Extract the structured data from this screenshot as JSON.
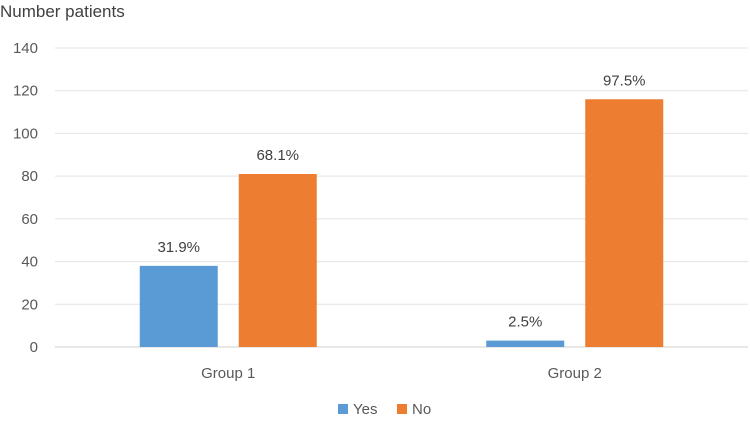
{
  "chart_data": {
    "type": "bar",
    "ylabel": "Number patients",
    "categories": [
      "Group 1",
      "Group 2"
    ],
    "series": [
      {
        "name": "Yes",
        "color": "#5B9BD5",
        "values": [
          38,
          3
        ],
        "labels": [
          "31.9%",
          "2.5%"
        ]
      },
      {
        "name": "No",
        "color": "#ED7D31",
        "values": [
          81,
          116
        ],
        "labels": [
          "68.1%",
          "97.5%"
        ]
      }
    ],
    "yticks": [
      0,
      20,
      40,
      60,
      80,
      100,
      120,
      140
    ],
    "ylim": [
      0,
      140
    ],
    "grid": true,
    "legend": "bottom"
  }
}
